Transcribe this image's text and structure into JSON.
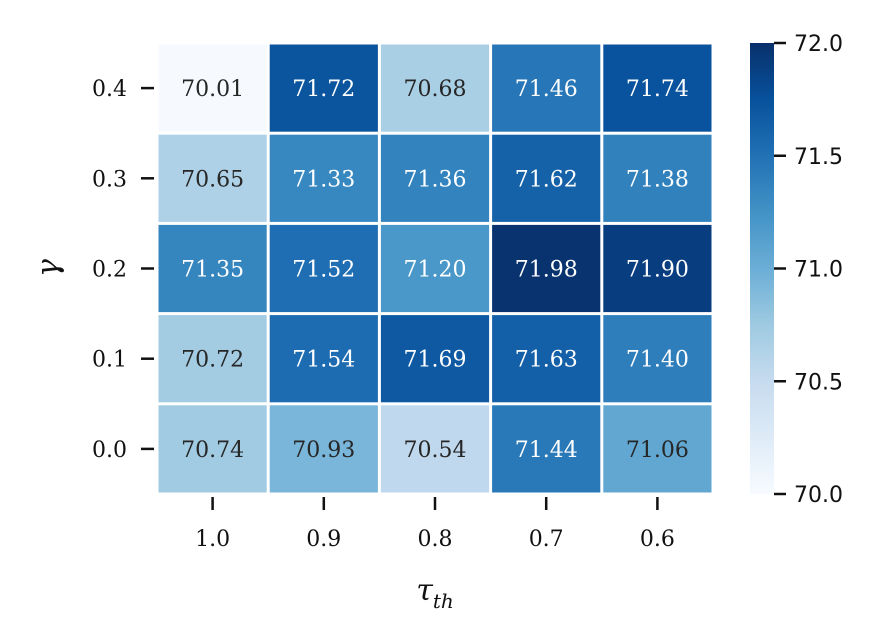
{
  "chart_data": {
    "type": "heatmap",
    "title": "",
    "xlabel": "τ",
    "xlabel_subscript": "th",
    "ylabel": "γ",
    "x_categories": [
      "1.0",
      "0.9",
      "0.8",
      "0.7",
      "0.6"
    ],
    "y_categories": [
      "0.4",
      "0.3",
      "0.2",
      "0.1",
      "0.0"
    ],
    "values": [
      [
        70.01,
        71.72,
        70.68,
        71.46,
        71.74
      ],
      [
        70.65,
        71.33,
        71.36,
        71.62,
        71.38
      ],
      [
        71.35,
        71.52,
        71.2,
        71.98,
        71.9
      ],
      [
        70.72,
        71.54,
        71.69,
        71.63,
        71.4
      ],
      [
        70.74,
        70.93,
        70.54,
        71.44,
        71.06
      ]
    ],
    "value_labels": [
      [
        "70.01",
        "71.72",
        "70.68",
        "71.46",
        "71.74"
      ],
      [
        "70.65",
        "71.33",
        "71.36",
        "71.62",
        "71.38"
      ],
      [
        "71.35",
        "71.52",
        "71.20",
        "71.98",
        "71.90"
      ],
      [
        "70.72",
        "71.54",
        "71.69",
        "71.63",
        "71.40"
      ],
      [
        "70.74",
        "70.93",
        "70.54",
        "71.44",
        "71.06"
      ]
    ],
    "colorbar": {
      "min": 70.0,
      "max": 72.0,
      "ticks": [
        70.0,
        70.5,
        71.0,
        71.5,
        72.0
      ],
      "tick_labels": [
        "70.0",
        "70.5",
        "71.0",
        "71.5",
        "72.0"
      ],
      "colormap": "Blues",
      "colors": [
        "#f7fbff",
        "#deebf7",
        "#c6dbef",
        "#9ecae1",
        "#6baed6",
        "#4292c6",
        "#2171b5",
        "#08519c",
        "#08306b"
      ]
    },
    "text_color_dark": "#262626",
    "text_color_light": "#ffffff",
    "grid": false,
    "legend": "colorbar-right"
  }
}
